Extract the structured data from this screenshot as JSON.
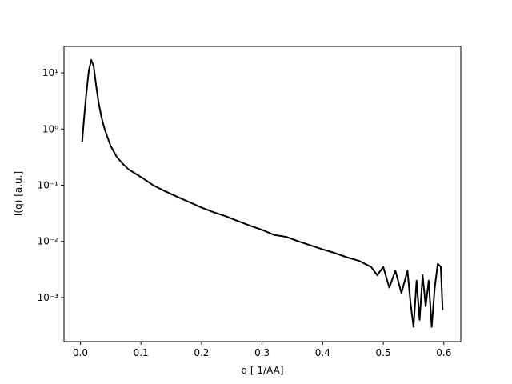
{
  "chart_data": {
    "type": "line",
    "xlabel": "q [ 1/AA]",
    "ylabel": "I(q) [a.u.]",
    "x": [
      0.003,
      0.006,
      0.01,
      0.014,
      0.018,
      0.022,
      0.026,
      0.03,
      0.035,
      0.04,
      0.05,
      0.06,
      0.07,
      0.08,
      0.1,
      0.12,
      0.14,
      0.16,
      0.18,
      0.2,
      0.22,
      0.24,
      0.26,
      0.28,
      0.3,
      0.32,
      0.34,
      0.36,
      0.38,
      0.4,
      0.42,
      0.44,
      0.46,
      0.48,
      0.49,
      0.5,
      0.51,
      0.52,
      0.53,
      0.54,
      0.545,
      0.55,
      0.555,
      0.56,
      0.565,
      0.57,
      0.575,
      0.58,
      0.585,
      0.59,
      0.595,
      0.598
    ],
    "values": [
      0.6,
      1.5,
      4.5,
      11,
      17,
      13,
      6,
      3,
      1.6,
      1.0,
      0.5,
      0.32,
      0.24,
      0.19,
      0.14,
      0.1,
      0.078,
      0.062,
      0.05,
      0.04,
      0.033,
      0.028,
      0.023,
      0.019,
      0.016,
      0.013,
      0.012,
      0.01,
      0.0085,
      0.0072,
      0.0062,
      0.0052,
      0.0045,
      0.0035,
      0.0025,
      0.0035,
      0.0015,
      0.003,
      0.0012,
      0.003,
      0.0008,
      0.0003,
      0.002,
      0.0004,
      0.0025,
      0.0007,
      0.002,
      0.0003,
      0.0015,
      0.004,
      0.0035,
      0.0006
    ],
    "color": "#000000",
    "xlim": [
      -0.027,
      0.628
    ],
    "xticks": [
      {
        "value": 0,
        "label": "0.0"
      },
      0.1,
      0.2,
      0.3,
      0.4,
      0.5,
      0.6
    ],
    "ylim": [
      0.000164,
      29.6
    ],
    "yscale": "log",
    "yticks": [
      {
        "value": 0.001,
        "label": "10⁻³"
      },
      {
        "value": 0.01,
        "label": "10⁻²"
      },
      {
        "value": 0.1,
        "label": "10⁻¹"
      },
      {
        "value": 1,
        "label": "10⁰"
      },
      {
        "value": 10,
        "label": "10¹"
      }
    ],
    "grid": false
  }
}
